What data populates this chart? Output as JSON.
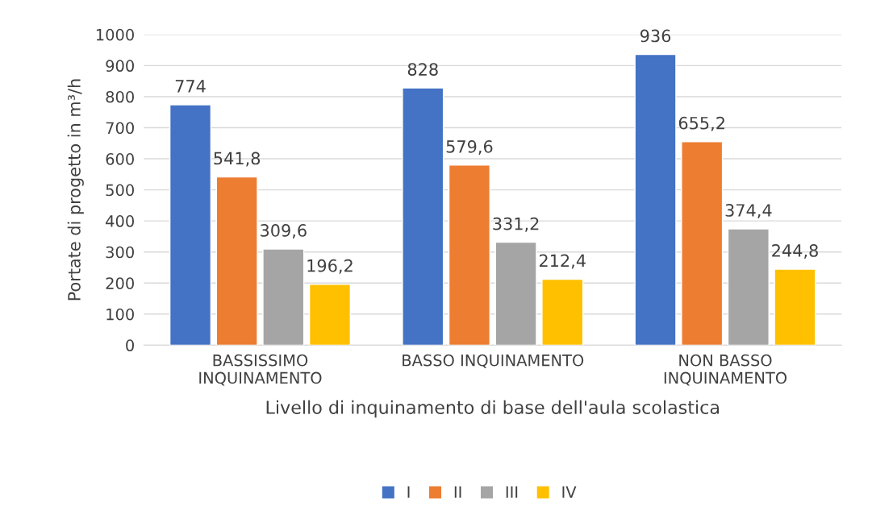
{
  "chart_data": {
    "type": "bar",
    "xlabel": "Livello di inquinamento di base dell'aula scolastica",
    "ylabel": "Portate di progetto in m³/h",
    "categories": [
      "BASSISSIMO\nINQUINAMENTO",
      "BASSO INQUINAMENTO",
      "NON BASSO\nINQUINAMENTO"
    ],
    "series": [
      {
        "name": "I",
        "color": "#4472c4",
        "values": [
          774,
          828,
          936
        ],
        "value_labels": [
          "774",
          "828",
          "936"
        ]
      },
      {
        "name": "II",
        "color": "#ed7d31",
        "values": [
          541.8,
          579.6,
          655.2
        ],
        "value_labels": [
          "541,8",
          "579,6",
          "655,2"
        ]
      },
      {
        "name": "III",
        "color": "#a5a5a5",
        "values": [
          309.6,
          331.2,
          374.4
        ],
        "value_labels": [
          "309,6",
          "331,2",
          "374,4"
        ]
      },
      {
        "name": "IV",
        "color": "#ffc000",
        "values": [
          196.2,
          212.4,
          244.8
        ],
        "value_labels": [
          "196,2",
          "212,4",
          "244,8"
        ]
      }
    ],
    "ylim": [
      0,
      1000
    ],
    "yticks": [
      0,
      100,
      200,
      300,
      400,
      500,
      600,
      700,
      800,
      900,
      1000
    ],
    "grid": "y",
    "legend": "bottom"
  }
}
